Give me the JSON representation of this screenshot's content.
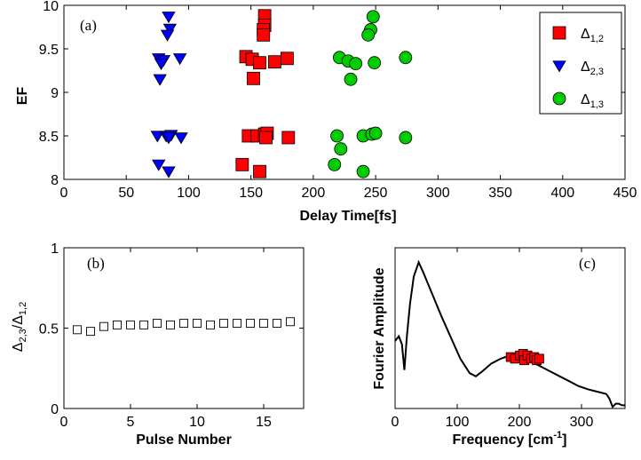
{
  "chart_data": [
    {
      "type": "scatter",
      "panel_label": "(a)",
      "xlabel": "Delay Time[fs]",
      "ylabel": "EF",
      "xlim": [
        0,
        450
      ],
      "ylim": [
        8,
        10
      ],
      "xticks": [
        0,
        50,
        100,
        150,
        200,
        250,
        300,
        350,
        400,
        450
      ],
      "yticks": [
        8,
        8.5,
        9,
        9.5,
        10
      ],
      "ytick_labels": [
        "8",
        "8.5",
        "9",
        "9.5",
        "10"
      ],
      "legend_position": "top-right",
      "series": [
        {
          "name": "Δ1,2",
          "name_main": "Δ",
          "name_sub": "1,2",
          "marker": "square",
          "color": "#ff0000",
          "points": [
            [
              161,
              9.88
            ],
            [
              161,
              9.77
            ],
            [
              160,
              9.72
            ],
            [
              160,
              9.66
            ],
            [
              146,
              9.41
            ],
            [
              151,
              9.38
            ],
            [
              157,
              9.34
            ],
            [
              169,
              9.35
            ],
            [
              179,
              9.39
            ],
            [
              152,
              9.16
            ],
            [
              148,
              8.5
            ],
            [
              155,
              8.5
            ],
            [
              161,
              8.52
            ],
            [
              163,
              8.53
            ],
            [
              162,
              8.48
            ],
            [
              180,
              8.48
            ],
            [
              143,
              8.17
            ],
            [
              157,
              8.09
            ]
          ]
        },
        {
          "name": "Δ2,3",
          "name_main": "Δ",
          "name_sub": "2,3",
          "marker": "triangle-down",
          "color": "#0000ff",
          "points": [
            [
              84,
              9.87
            ],
            [
              85,
              9.73
            ],
            [
              83,
              9.66
            ],
            [
              76,
              9.39
            ],
            [
              80,
              9.37
            ],
            [
              93,
              9.39
            ],
            [
              78,
              9.33
            ],
            [
              77,
              9.15
            ],
            [
              75,
              8.5
            ],
            [
              82,
              8.5
            ],
            [
              86,
              8.51
            ],
            [
              84,
              8.48
            ],
            [
              94,
              8.48
            ],
            [
              76,
              8.17
            ],
            [
              84,
              8.09
            ]
          ]
        },
        {
          "name": "Δ1,3",
          "name_main": "Δ",
          "name_sub": "1,3",
          "marker": "circle",
          "color": "#00cc00",
          "points": [
            [
              248,
              9.87
            ],
            [
              246,
              9.72
            ],
            [
              244,
              9.66
            ],
            [
              221,
              9.4
            ],
            [
              228,
              9.36
            ],
            [
              234,
              9.33
            ],
            [
              249,
              9.34
            ],
            [
              274,
              9.4
            ],
            [
              230,
              9.15
            ],
            [
              219,
              8.5
            ],
            [
              240,
              8.5
            ],
            [
              247,
              8.52
            ],
            [
              250,
              8.53
            ],
            [
              274,
              8.48
            ],
            [
              222,
              8.35
            ],
            [
              217,
              8.17
            ],
            [
              240,
              8.09
            ]
          ]
        }
      ]
    },
    {
      "type": "scatter",
      "panel_label": "(b)",
      "xlabel": "Pulse Number",
      "ylabel": "Δ2,3/Δ1,2",
      "ylabel_parts": [
        "Δ",
        "2,3",
        "/Δ",
        "1,2"
      ],
      "xlim": [
        0,
        18
      ],
      "ylim": [
        0,
        1
      ],
      "xticks": [
        0,
        5,
        10,
        15
      ],
      "yticks": [
        0,
        0.5,
        1
      ],
      "ytick_labels": [
        "0",
        "0.5",
        "1"
      ],
      "marker": "square-open",
      "color": "#000000",
      "x": [
        1,
        2,
        3,
        4,
        5,
        6,
        7,
        8,
        9,
        10,
        11,
        12,
        13,
        14,
        15,
        16,
        17
      ],
      "y": [
        0.49,
        0.48,
        0.51,
        0.52,
        0.52,
        0.52,
        0.53,
        0.52,
        0.53,
        0.53,
        0.52,
        0.53,
        0.53,
        0.53,
        0.53,
        0.53,
        0.54
      ]
    },
    {
      "type": "line",
      "panel_label": "(c)",
      "xlabel": "Frequency [cm-1]",
      "xlabel_main": "Frequency [cm",
      "xlabel_sup": "-1",
      "xlabel_end": "]",
      "ylabel": "Fourier Amplitude",
      "xlim": [
        0,
        370
      ],
      "ylim": [
        0,
        1
      ],
      "xticks": [
        0,
        100,
        200,
        300
      ],
      "line_color": "#000000",
      "line": {
        "x": [
          0,
          6,
          11,
          15,
          19,
          24,
          30,
          38,
          45,
          60,
          75,
          90,
          105,
          120,
          130,
          140,
          155,
          170,
          185,
          200,
          210,
          220,
          230,
          240,
          250,
          265,
          280,
          295,
          310,
          320,
          330,
          340,
          345,
          350,
          355,
          360,
          365,
          370
        ],
        "y": [
          0.42,
          0.45,
          0.4,
          0.24,
          0.45,
          0.65,
          0.82,
          0.91,
          0.85,
          0.71,
          0.57,
          0.44,
          0.31,
          0.22,
          0.2,
          0.23,
          0.28,
          0.31,
          0.33,
          0.32,
          0.31,
          0.29,
          0.27,
          0.25,
          0.23,
          0.2,
          0.17,
          0.14,
          0.12,
          0.11,
          0.1,
          0.09,
          0.06,
          0.01,
          0.03,
          0.03,
          0.02,
          0.02
        ]
      },
      "markers": {
        "marker": "square",
        "color": "#ff0000",
        "points": [
          [
            186,
            0.32
          ],
          [
            193,
            0.31
          ],
          [
            201,
            0.33
          ],
          [
            206,
            0.34
          ],
          [
            208,
            0.3
          ],
          [
            213,
            0.33
          ],
          [
            219,
            0.31
          ],
          [
            224,
            0.32
          ],
          [
            228,
            0.3
          ],
          [
            232,
            0.31
          ]
        ]
      }
    }
  ]
}
